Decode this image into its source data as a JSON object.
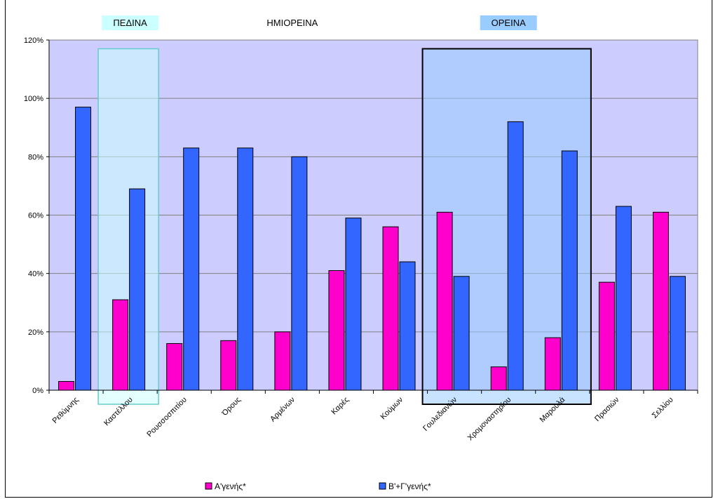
{
  "chart_data": {
    "type": "bar",
    "title": "",
    "xlabel": "",
    "ylabel": "",
    "ylim": [
      0,
      120
    ],
    "yticks": [
      "0%",
      "20%",
      "40%",
      "60%",
      "80%",
      "100%",
      "120%"
    ],
    "grid": true,
    "legend_position": "bottom",
    "categories": [
      "Ρεθύμνης",
      "Καστέλλου",
      "Ρουσσοσπιτίου",
      "Όρους",
      "Αρμένων",
      "Καρές",
      "Κούμων",
      "Γουλεδιανών",
      "Χρομοναστηρίου",
      "Μαρουλά",
      "Πρασιών",
      "Σελλίου"
    ],
    "series": [
      {
        "name": "Α'γενής*",
        "color": "#ff00cc",
        "values": [
          3,
          31,
          16,
          17,
          20,
          41,
          56,
          61,
          8,
          18,
          37,
          61
        ]
      },
      {
        "name": "Β'+Γ'γενής*",
        "color": "#3366ff",
        "values": [
          97,
          69,
          83,
          83,
          80,
          59,
          44,
          39,
          92,
          82,
          63,
          39
        ]
      }
    ],
    "zones": [
      {
        "label": "ΠΕΔΙΝΑ",
        "fill": "#ccffff",
        "box_color": "#66cccc",
        "from_category": 1,
        "to_category": 1
      },
      {
        "label": "ΗΜΙΟΡΕΙΝΑ",
        "fill": "none",
        "box_color": "none",
        "from_category": 2,
        "to_category": 6
      },
      {
        "label": "ΟΡΕΙΝΑ",
        "fill": "#99ccff",
        "box_color": "#000000",
        "from_category": 7,
        "to_category": 9
      }
    ],
    "colors": {
      "plot_background": "#ccccff",
      "gridline": "#808080"
    }
  }
}
